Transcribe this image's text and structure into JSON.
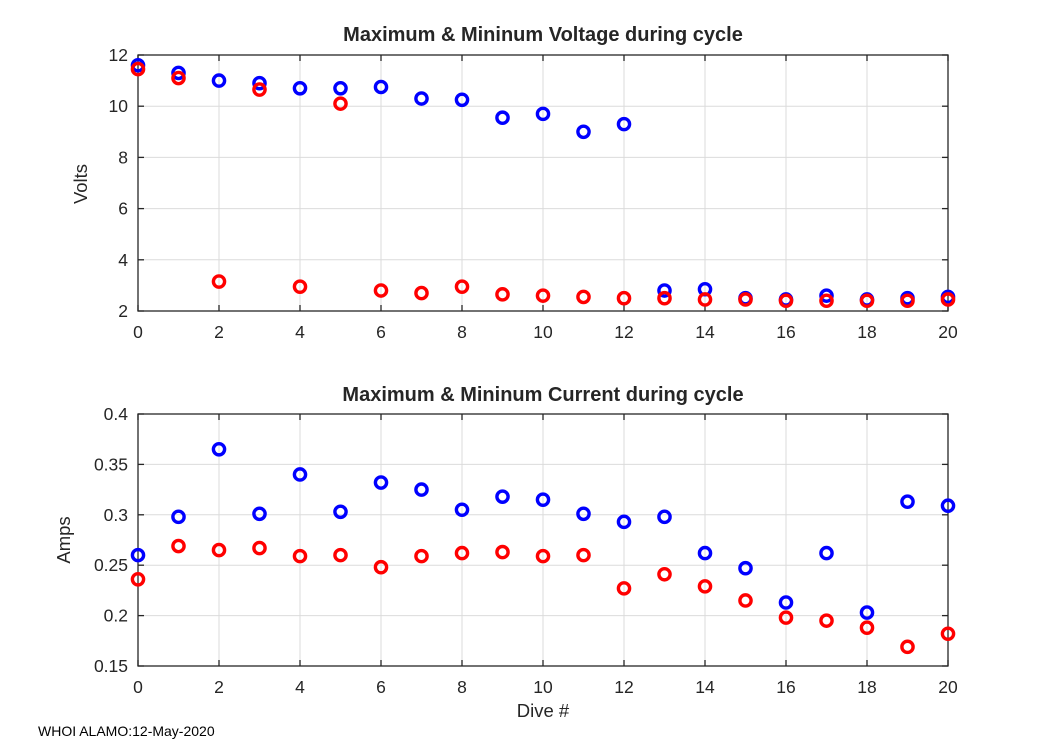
{
  "figure": {
    "footer": "WHOI ALAMO:12-May-2020",
    "background": "#ffffff"
  },
  "colors": {
    "max_series": "#0000FF",
    "min_series": "#FF0000",
    "axis": "#262626",
    "grid": "#DBDBDB"
  },
  "chart_data": [
    {
      "type": "scatter",
      "title": "Maximum & Mininum Voltage during cycle",
      "xlabel": "",
      "ylabel": "Volts",
      "xlim": [
        0,
        20
      ],
      "ylim": [
        2,
        12
      ],
      "xticks": [
        0,
        2,
        4,
        6,
        8,
        10,
        12,
        14,
        16,
        18,
        20
      ],
      "xticklabels": [
        "0",
        "2",
        "4",
        "6",
        "8",
        "10",
        "12",
        "14",
        "16",
        "18",
        "20"
      ],
      "yticks": [
        2,
        4,
        6,
        8,
        10,
        12
      ],
      "yticklabels": [
        "2",
        "4",
        "6",
        "8",
        "10",
        "12"
      ],
      "grid": true,
      "legend": "none",
      "marker": "open-circle",
      "x": [
        0,
        1,
        2,
        3,
        4,
        5,
        6,
        7,
        8,
        9,
        10,
        11,
        12,
        13,
        14,
        15,
        16,
        17,
        18,
        19,
        20
      ],
      "series": [
        {
          "name": "maximum",
          "color_key": "max_series",
          "values": [
            11.6,
            11.3,
            11.0,
            10.9,
            10.7,
            10.7,
            10.75,
            10.3,
            10.25,
            9.55,
            9.7,
            9.0,
            9.3,
            2.8,
            2.85,
            2.5,
            2.45,
            2.6,
            2.45,
            2.5,
            2.55
          ]
        },
        {
          "name": "minimum",
          "color_key": "min_series",
          "values": [
            11.45,
            11.1,
            3.15,
            10.65,
            2.95,
            10.1,
            2.8,
            2.7,
            2.95,
            2.65,
            2.6,
            2.55,
            2.5,
            2.5,
            2.45,
            2.45,
            2.4,
            2.4,
            2.4,
            2.4,
            2.45
          ]
        }
      ]
    },
    {
      "type": "scatter",
      "title": "Maximum & Mininum Current during cycle",
      "xlabel": "Dive #",
      "ylabel": "Amps",
      "xlim": [
        0,
        20
      ],
      "ylim": [
        0.15,
        0.4
      ],
      "xticks": [
        0,
        2,
        4,
        6,
        8,
        10,
        12,
        14,
        16,
        18,
        20
      ],
      "xticklabels": [
        "0",
        "2",
        "4",
        "6",
        "8",
        "10",
        "12",
        "14",
        "16",
        "18",
        "20"
      ],
      "yticks": [
        0.15,
        0.2,
        0.25,
        0.3,
        0.35,
        0.4
      ],
      "yticklabels": [
        "0.15",
        "0.2",
        "0.25",
        "0.3",
        "0.35",
        "0.4"
      ],
      "grid": true,
      "legend": "none",
      "marker": "open-circle",
      "x": [
        0,
        1,
        2,
        3,
        4,
        5,
        6,
        7,
        8,
        9,
        10,
        11,
        12,
        13,
        14,
        15,
        16,
        17,
        18,
        19,
        20
      ],
      "series": [
        {
          "name": "maximum",
          "color_key": "max_series",
          "values": [
            0.26,
            0.298,
            0.365,
            0.301,
            0.34,
            0.303,
            0.332,
            0.325,
            0.305,
            0.318,
            0.315,
            0.301,
            0.293,
            0.298,
            0.262,
            0.247,
            0.213,
            0.262,
            0.203,
            0.313,
            0.309
          ]
        },
        {
          "name": "minimum",
          "color_key": "min_series",
          "values": [
            0.236,
            0.269,
            0.265,
            0.267,
            0.259,
            0.26,
            0.248,
            0.259,
            0.262,
            0.263,
            0.259,
            0.26,
            0.227,
            0.241,
            0.229,
            0.215,
            0.198,
            0.195,
            0.188,
            0.169,
            0.182
          ]
        }
      ]
    }
  ]
}
